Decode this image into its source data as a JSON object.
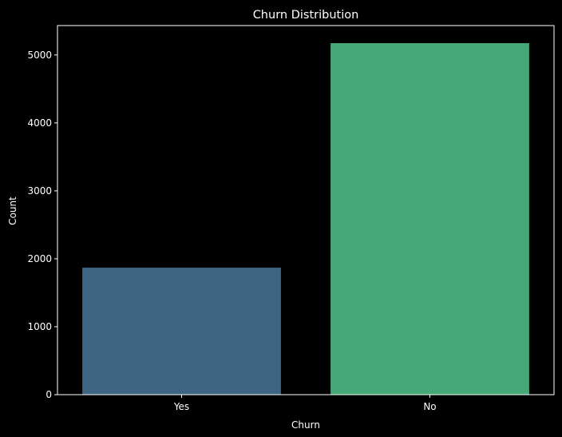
{
  "chart_data": {
    "type": "bar",
    "title": "Churn Distribution",
    "xlabel": "Churn",
    "ylabel": "Count",
    "categories": [
      "Yes",
      "No"
    ],
    "values": [
      1869,
      5174
    ],
    "colors": [
      "#3e6582",
      "#46a877"
    ],
    "ylim": [
      0,
      5433
    ],
    "yticks": [
      0,
      1000,
      2000,
      3000,
      4000,
      5000
    ],
    "grid": false
  },
  "style": {
    "background": "#000000",
    "axes_color": "#ffffff",
    "text_color": "#ffffff"
  }
}
